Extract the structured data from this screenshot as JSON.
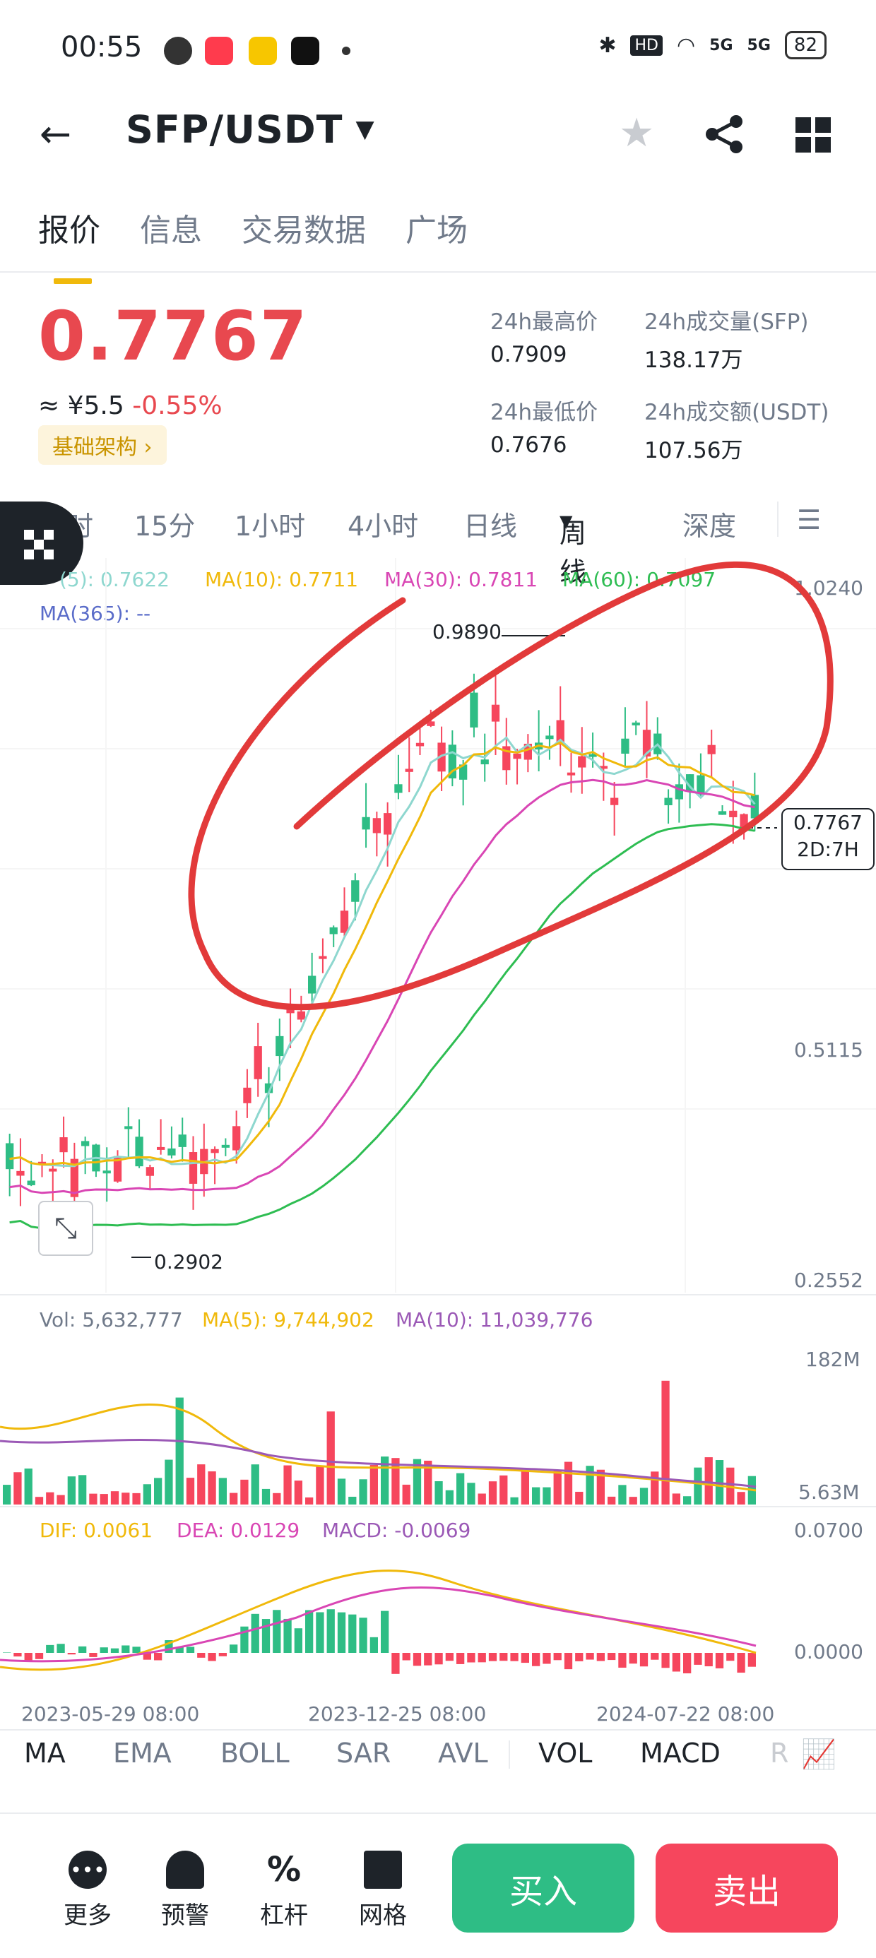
{
  "status": {
    "time": "00:55",
    "hd": "HD",
    "net1": "5G",
    "net2": "5G",
    "battery": "82"
  },
  "header": {
    "pair": "SFP/USDT"
  },
  "tabs": [
    "报价",
    "信息",
    "交易数据",
    "广场"
  ],
  "price": {
    "last": "0.7767",
    "cny": "≈ ¥5.5",
    "change": "-0.55%",
    "tag": "基础架构",
    "high_label": "24h最高价",
    "high": "0.7909",
    "low_label": "24h最低价",
    "low": "0.7676",
    "vol_label": "24h成交量(SFP)",
    "vol": "138.17万",
    "amt_label": "24h成交额(USDT)",
    "amt": "107.56万"
  },
  "intervals": [
    "时",
    "15分",
    "1小时",
    "4小时",
    "日线",
    "周线",
    "深度"
  ],
  "ma": {
    "ma5": "(5): 0.7622",
    "ma10": "MA(10): 0.7711",
    "ma30": "MA(30): 0.7811",
    "ma60": "MA(60): 0.7097",
    "ma365": "MA(365): --"
  },
  "price_axis": [
    "1.0240",
    "0.5115",
    "0.2552"
  ],
  "markers": {
    "high": "0.9890",
    "low": "0.2902",
    "current": "0.7767",
    "countdown": "2D:7H"
  },
  "volume": {
    "vol": "Vol: 5,632,777",
    "ma5": "MA(5): 9,744,902",
    "ma10": "MA(10): 11,039,776",
    "axis_top": "182M",
    "axis_bottom": "5.63M"
  },
  "macd": {
    "dif": "DIF: 0.0061",
    "dea": "DEA: 0.0129",
    "macd": "MACD: -0.0069",
    "axis_top": "0.0700",
    "axis_bottom": "0.0000"
  },
  "dates": [
    "2023-05-29 08:00",
    "2023-12-25 08:00",
    "2024-07-22 08:00"
  ],
  "indicators": [
    "MA",
    "EMA",
    "BOLL",
    "SAR",
    "AVL",
    "VOL",
    "MACD",
    "R"
  ],
  "bottom": {
    "more": "更多",
    "alert": "预警",
    "leverage": "杠杆",
    "grid": "网格",
    "buy": "买入",
    "sell": "卖出"
  },
  "colors": {
    "up": "#2ebd85",
    "down": "#f6465d",
    "accent": "#f0b90b"
  }
}
